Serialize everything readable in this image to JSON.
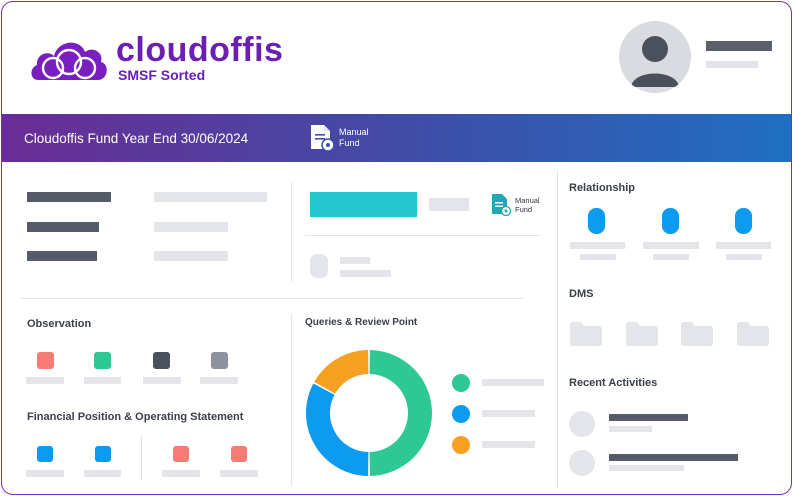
{
  "brand": {
    "name": "cloudoffis",
    "tagline": "SMSF Sorted"
  },
  "banner": {
    "title": "Cloudoffis Fund Year End 30/06/2024",
    "badge_label": "Manual Fund"
  },
  "summary": {
    "badge_label": "Manual Fund"
  },
  "sections": {
    "relationship": "Relationship",
    "dms": "DMS",
    "recent_activities": "Recent Activities",
    "observation": "Observation",
    "queries": "Queries & Review Point",
    "financial": "Financial Position & Operating Statement"
  },
  "colors": {
    "brand": "#6b1fb3",
    "teal": "#22c7cf",
    "blue": "#0d9bf0",
    "green": "#2dc893",
    "orange": "#f6a021",
    "salmon": "#f47c74",
    "dark": "#4a505c",
    "grey": "#8d939e"
  },
  "icons": {
    "logo": "cloud-logo-icon",
    "avatar": "user-avatar-icon",
    "manual_fund": "document-gear-icon",
    "folder": "folder-icon"
  },
  "queries_chart": {
    "type": "donut",
    "slices": [
      {
        "color": "#2dc893",
        "value": 0.5
      },
      {
        "color": "#0d9bf0",
        "value": 0.33
      },
      {
        "color": "#f6a021",
        "value": 0.17
      }
    ]
  }
}
